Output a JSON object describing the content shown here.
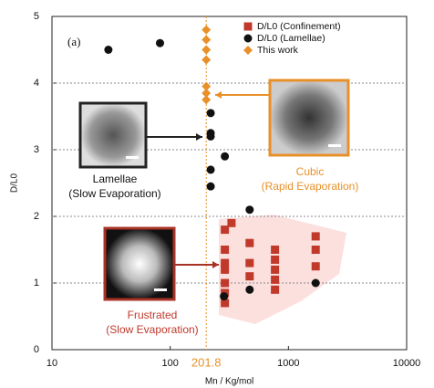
{
  "chart_data": {
    "type": "scatter",
    "xlabel": "Mn / Kg/mol",
    "ylabel": "D/L0",
    "xlim": [
      10,
      10000
    ],
    "ylim": [
      0,
      5
    ],
    "xscale": "log",
    "xticks": [
      10,
      100,
      1000,
      10000
    ],
    "yticks": [
      0,
      1,
      2,
      3,
      4,
      5
    ],
    "grid": true,
    "legend": "upper right",
    "vline_x": 201.8,
    "vline_color": "#e8902a",
    "series": [
      {
        "name": "D/L0 (Confinement)",
        "color": "#c0392b",
        "marker": "square",
        "x": [
          290,
          290,
          290,
          290,
          290,
          290,
          290,
          330,
          470,
          470,
          470,
          770,
          770,
          770,
          770,
          770,
          1700,
          1700,
          1700
        ],
        "y": [
          1.8,
          1.5,
          1.3,
          1.2,
          1.0,
          0.85,
          0.7,
          1.9,
          1.6,
          1.3,
          1.1,
          1.5,
          1.35,
          1.2,
          1.05,
          0.9,
          1.7,
          1.5,
          1.25
        ]
      },
      {
        "name": "D/L0 (Lamellae)",
        "color": "#111111",
        "marker": "circle",
        "x": [
          30,
          82,
          220,
          220,
          220,
          220,
          220,
          290,
          470,
          285,
          470,
          1700
        ],
        "y": [
          4.5,
          4.6,
          3.55,
          3.25,
          3.2,
          2.7,
          2.45,
          2.9,
          2.1,
          0.8,
          0.9,
          1.0
        ]
      },
      {
        "name": "This work",
        "color": "#e8902a",
        "marker": "diamond",
        "x": [
          201.8,
          201.8,
          201.8,
          201.8,
          201.8,
          201.8,
          201.8
        ],
        "y": [
          4.8,
          4.65,
          4.5,
          4.35,
          3.95,
          3.85,
          3.75
        ]
      }
    ],
    "annotations": {
      "panel": "(a)",
      "lamellae": [
        "Lamellae",
        "(Slow Evaporation)"
      ],
      "cubic": [
        "Cubic",
        "(Rapid Evaporation)"
      ],
      "frustrated": [
        "Frustrated",
        "(Slow Evaporation)"
      ]
    }
  }
}
